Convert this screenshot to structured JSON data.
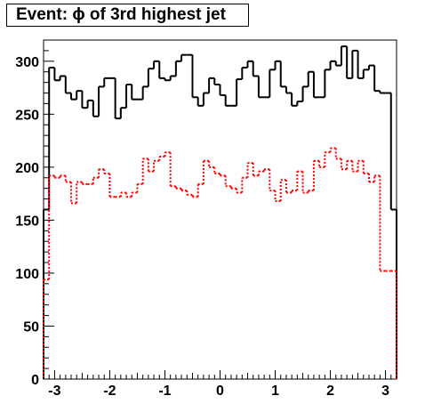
{
  "chart_data": {
    "type": "line",
    "title": "Event: ϕ of 3rd highest jet",
    "xlabel": "",
    "ylabel": "",
    "xlim": [
      -3.2,
      3.2
    ],
    "ylim": [
      0,
      320
    ],
    "x_ticks": [
      "-3",
      "-2",
      "-1",
      "0",
      "1",
      "2",
      "3"
    ],
    "y_ticks": [
      "0",
      "50",
      "100",
      "150",
      "200",
      "250",
      "300"
    ],
    "bin_edges": [
      -3.2,
      -3.1,
      -3.0,
      -2.9,
      -2.8,
      -2.7,
      -2.6,
      -2.5,
      -2.4,
      -2.3,
      -2.2,
      -2.1,
      -2.0,
      -1.9,
      -1.8,
      -1.7,
      -1.6,
      -1.5,
      -1.4,
      -1.3,
      -1.2,
      -1.1,
      -1.0,
      -0.9,
      -0.8,
      -0.7,
      -0.6,
      -0.5,
      -0.4,
      -0.3,
      -0.2,
      -0.1,
      0.0,
      0.1,
      0.2,
      0.3,
      0.4,
      0.5,
      0.6,
      0.7,
      0.8,
      0.9,
      1.0,
      1.1,
      1.2,
      1.3,
      1.4,
      1.5,
      1.6,
      1.7,
      1.8,
      1.9,
      2.0,
      2.1,
      2.2,
      2.3,
      2.4,
      2.5,
      2.6,
      2.7,
      2.8,
      2.9,
      3.0,
      3.1,
      3.2
    ],
    "series": [
      {
        "color": "#000000",
        "style": "solid",
        "values": [
          160,
          294,
          282,
          286,
          270,
          264,
          272,
          256,
          263,
          248,
          276,
          284,
          284,
          246,
          256,
          278,
          264,
          264,
          276,
          293,
          300,
          284,
          282,
          286,
          300,
          306,
          306,
          266,
          258,
          270,
          284,
          278,
          268,
          258,
          258,
          283,
          294,
          300,
          286,
          266,
          266,
          292,
          300,
          276,
          270,
          258,
          262,
          276,
          290,
          266,
          266,
          292,
          300,
          296,
          314,
          284,
          310,
          284,
          292,
          296,
          272,
          270,
          270,
          160
        ]
      },
      {
        "color": "#ff0000",
        "style": "dotted",
        "values": [
          94,
          192,
          190,
          192,
          186,
          166,
          186,
          184,
          184,
          190,
          198,
          194,
          172,
          172,
          176,
          172,
          176,
          184,
          208,
          196,
          206,
          210,
          214,
          182,
          180,
          178,
          174,
          172,
          184,
          206,
          200,
          194,
          192,
          182,
          180,
          176,
          190,
          204,
          192,
          196,
          198,
          178,
          168,
          188,
          176,
          178,
          196,
          176,
          178,
          206,
          200,
          214,
          218,
          208,
          198,
          206,
          196,
          206,
          194,
          186,
          192,
          102,
          102,
          102
        ]
      }
    ],
    "grid": false,
    "legend": "none"
  }
}
